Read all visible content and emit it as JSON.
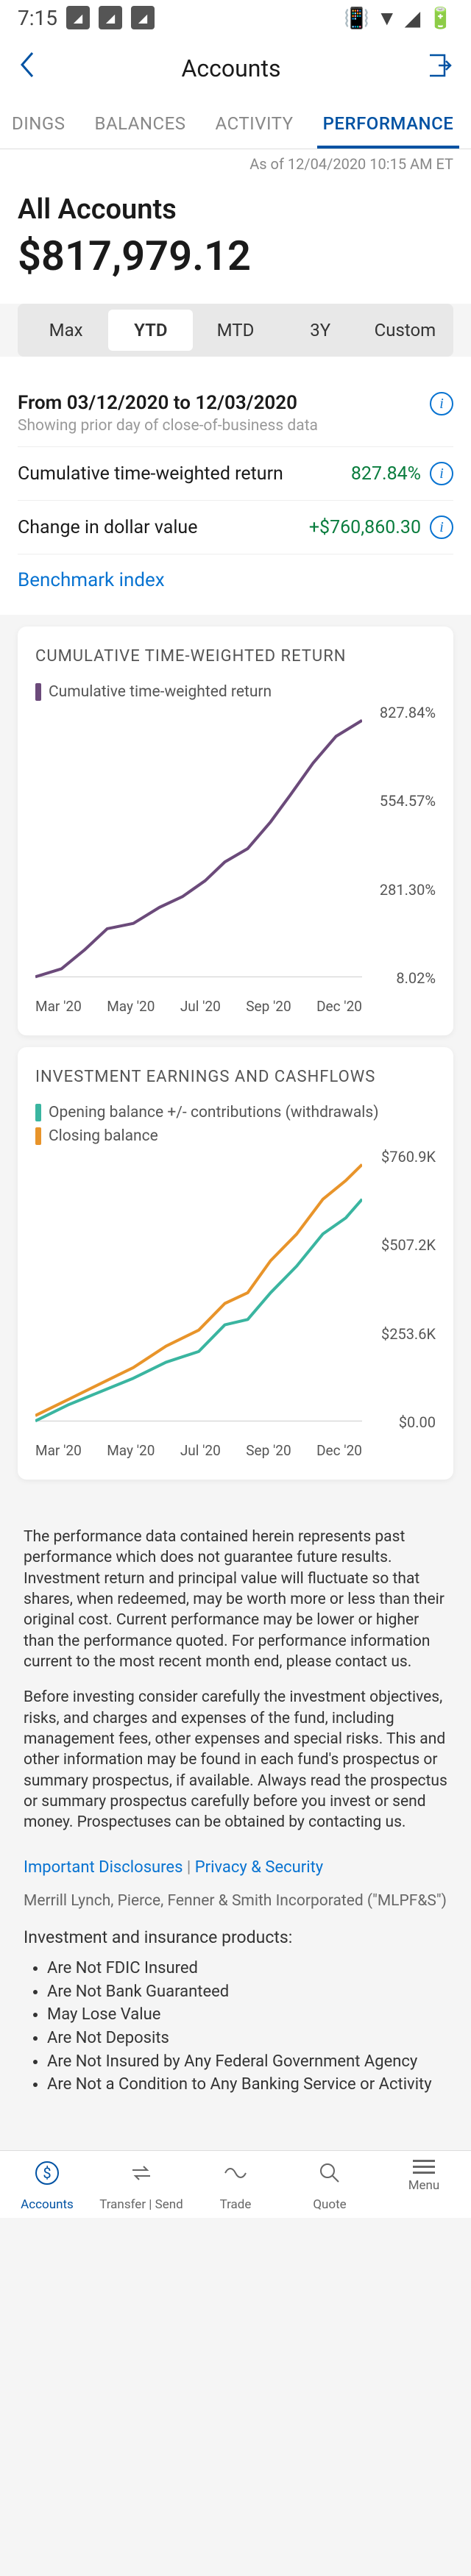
{
  "statusBar": {
    "time": "7:15",
    "icons": [
      "chart",
      "chart",
      "chart"
    ]
  },
  "header": {
    "title": "Accounts"
  },
  "tabs": [
    {
      "label": "DINGS",
      "active": false
    },
    {
      "label": "BALANCES",
      "active": false
    },
    {
      "label": "ACTIVITY",
      "active": false
    },
    {
      "label": "PERFORMANCE",
      "active": true
    }
  ],
  "asOf": "As of 12/04/2020 10:15 AM ET",
  "account": {
    "label": "All Accounts",
    "value": "$817,979.12"
  },
  "periods": [
    {
      "label": "Max",
      "active": false
    },
    {
      "label": "YTD",
      "active": true
    },
    {
      "label": "MTD",
      "active": false
    },
    {
      "label": "3Y",
      "active": false
    },
    {
      "label": "Custom",
      "active": false
    }
  ],
  "dateRange": {
    "title": "From 03/12/2020 to 12/03/2020",
    "subtitle": "Showing prior day of close-of-business data"
  },
  "metrics": [
    {
      "label": "Cumulative time-weighted return",
      "value": "827.84%"
    },
    {
      "label": "Change in dollar value",
      "value": "+$760,860.30"
    }
  ],
  "benchmark": "Benchmark index",
  "chart1": {
    "title": "CUMULATIVE TIME-WEIGHTED RETURN",
    "legend": [
      {
        "label": "Cumulative time-weighted return",
        "color": "#6b4a7a"
      }
    ],
    "yLabels": [
      "827.84%",
      "554.57%",
      "281.30%",
      "8.02%"
    ],
    "xLabels": [
      "Mar '20",
      "May '20",
      "Jul '20",
      "Sep '20",
      "Dec '20"
    ],
    "series": [
      {
        "color": "#6b4a7a",
        "points": [
          [
            0,
            0.98
          ],
          [
            0.08,
            0.95
          ],
          [
            0.15,
            0.88
          ],
          [
            0.22,
            0.8
          ],
          [
            0.3,
            0.78
          ],
          [
            0.38,
            0.72
          ],
          [
            0.45,
            0.68
          ],
          [
            0.52,
            0.62
          ],
          [
            0.58,
            0.55
          ],
          [
            0.65,
            0.5
          ],
          [
            0.72,
            0.4
          ],
          [
            0.78,
            0.3
          ],
          [
            0.85,
            0.18
          ],
          [
            0.92,
            0.08
          ],
          [
            1.0,
            0.02
          ]
        ]
      }
    ]
  },
  "chart2": {
    "title": "INVESTMENT EARNINGS AND CASHFLOWS",
    "legend": [
      {
        "label": "Opening balance +/- contributions (withdrawals)",
        "color": "#3ab5a0"
      },
      {
        "label": "Closing balance",
        "color": "#e8942a"
      }
    ],
    "yLabels": [
      "$760.9K",
      "$507.2K",
      "$253.6K",
      "$0.00"
    ],
    "xLabels": [
      "Mar '20",
      "May '20",
      "Jul '20",
      "Sep '20",
      "Dec '20"
    ],
    "series": [
      {
        "color": "#3ab5a0",
        "points": [
          [
            0,
            0.98
          ],
          [
            0.1,
            0.92
          ],
          [
            0.2,
            0.87
          ],
          [
            0.3,
            0.82
          ],
          [
            0.4,
            0.76
          ],
          [
            0.5,
            0.72
          ],
          [
            0.58,
            0.62
          ],
          [
            0.65,
            0.6
          ],
          [
            0.72,
            0.5
          ],
          [
            0.8,
            0.4
          ],
          [
            0.88,
            0.28
          ],
          [
            0.95,
            0.22
          ],
          [
            1.0,
            0.15
          ]
        ]
      },
      {
        "color": "#e8942a",
        "points": [
          [
            0,
            0.96
          ],
          [
            0.1,
            0.9
          ],
          [
            0.2,
            0.84
          ],
          [
            0.3,
            0.78
          ],
          [
            0.4,
            0.7
          ],
          [
            0.5,
            0.64
          ],
          [
            0.58,
            0.54
          ],
          [
            0.65,
            0.5
          ],
          [
            0.72,
            0.38
          ],
          [
            0.8,
            0.28
          ],
          [
            0.88,
            0.15
          ],
          [
            0.95,
            0.08
          ],
          [
            1.0,
            0.02
          ]
        ]
      }
    ]
  },
  "disclosure": {
    "p1": "The performance data contained herein represents past performance which does not guarantee future results. Investment return and principal value will fluctuate so that shares, when redeemed, may be worth more or less than their original cost. Current performance may be lower or higher than the performance quoted. For performance information current to the most recent month end, please contact us.",
    "p2": "Before investing consider carefully the investment objectives, risks, and charges and expenses of the fund, including management fees, other expenses and special risks. This and other information may be found in each fund's prospectus or summary prospectus, if available. Always read the prospectus or summary prospectus carefully before you invest or send money. Prospectuses can be obtained by contacting us.",
    "link1": "Important Disclosures",
    "link2": "Privacy & Security",
    "company": "Merrill Lynch, Pierce, Fenner & Smith Incorporated (\"MLPF&S\")",
    "heading": "Investment and insurance products:",
    "bullets": [
      "Are Not FDIC Insured",
      "Are Not Bank Guaranteed",
      "May Lose Value",
      "Are Not Deposits",
      "Are Not Insured by Any Federal Government Agency",
      "Are Not a Condition to Any Banking Service or Activity"
    ]
  },
  "bottomNav": [
    {
      "label": "Accounts",
      "icon": "dollar",
      "active": true
    },
    {
      "label": "Transfer | Send",
      "icon": "transfer",
      "active": false
    },
    {
      "label": "Trade",
      "icon": "trade",
      "active": false
    },
    {
      "label": "Quote",
      "icon": "search",
      "active": false
    },
    {
      "label": "Menu",
      "icon": "menu",
      "active": false
    }
  ],
  "colors": {
    "primary": "#0052a3",
    "link": "#0873d1",
    "positive": "#0a7d3e"
  }
}
